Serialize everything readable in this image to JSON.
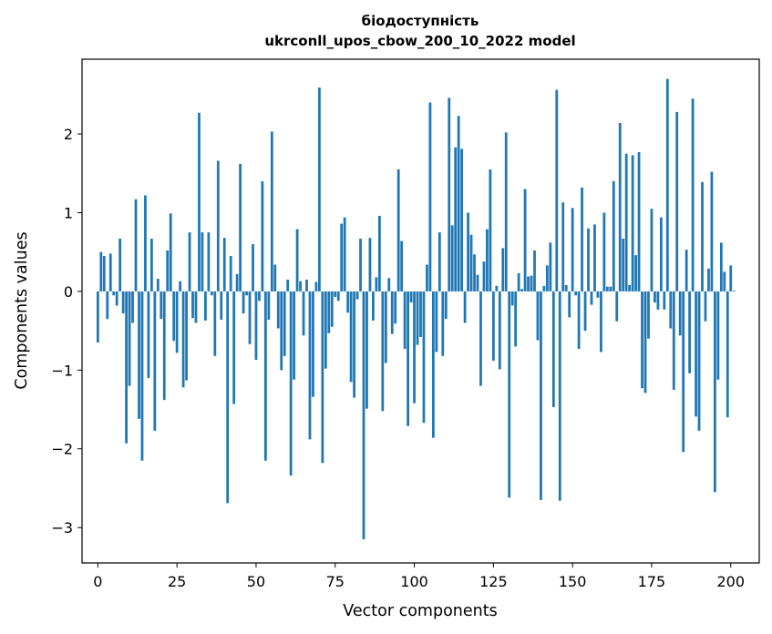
{
  "chart_data": {
    "type": "bar",
    "title": "біодоступність",
    "subtitle": "ukrconll_upos_cbow_200_10_2022 model",
    "xlabel": "Vector components",
    "ylabel": "Components values",
    "xlim": [
      -5,
      209
    ],
    "ylim": [
      -3.45,
      2.95
    ],
    "xticks": [
      0,
      25,
      50,
      75,
      100,
      125,
      150,
      175,
      200
    ],
    "xtick_labels": [
      "0",
      "25",
      "50",
      "75",
      "100",
      "125",
      "150",
      "175",
      "200"
    ],
    "yticks": [
      -3,
      -2,
      -1,
      0,
      1,
      2
    ],
    "ytick_labels": [
      "−3",
      "−2",
      "−1",
      "0",
      "1",
      "2"
    ],
    "bar_color": "#1f77b4",
    "grid": false,
    "values": [
      -0.65,
      0.5,
      0.45,
      -0.35,
      0.48,
      -0.05,
      -0.18,
      0.67,
      -0.28,
      -1.93,
      -1.2,
      -0.4,
      1.17,
      -1.62,
      -2.15,
      1.22,
      -1.1,
      0.67,
      -1.77,
      0.16,
      -0.35,
      -1.38,
      0.52,
      0.99,
      -0.63,
      -0.78,
      0.13,
      -1.22,
      -1.13,
      0.75,
      -0.34,
      -0.4,
      2.27,
      0.75,
      -0.37,
      0.75,
      -0.05,
      -0.82,
      1.66,
      -0.36,
      0.68,
      -2.69,
      0.45,
      -1.43,
      0.22,
      1.62,
      -0.28,
      -0.05,
      -0.67,
      0.6,
      -0.87,
      -0.12,
      1.4,
      -2.15,
      -0.36,
      2.03,
      0.34,
      -0.47,
      -1.0,
      -0.82,
      0.15,
      -2.34,
      -1.12,
      0.79,
      0.13,
      -0.56,
      0.15,
      -1.88,
      -1.34,
      0.12,
      2.59,
      -2.18,
      -0.98,
      -0.53,
      -0.45,
      -0.07,
      -0.12,
      0.86,
      0.94,
      -0.27,
      -1.15,
      -1.35,
      -0.1,
      0.67,
      -3.15,
      -1.49,
      0.68,
      -0.37,
      0.18,
      0.96,
      -1.52,
      -0.91,
      0.17,
      -0.54,
      -0.41,
      1.55,
      0.64,
      -0.73,
      -1.71,
      -0.14,
      -1.42,
      -0.68,
      -0.58,
      -1.67,
      0.34,
      2.4,
      -1.86,
      -0.77,
      0.75,
      -0.82,
      -0.35,
      2.46,
      0.84,
      1.83,
      2.23,
      1.81,
      -0.4,
      1.0,
      0.72,
      0.47,
      0.21,
      -1.2,
      0.38,
      0.79,
      1.55,
      -0.88,
      0.07,
      -0.99,
      0.55,
      2.02,
      -2.62,
      -0.18,
      -0.7,
      0.23,
      0.03,
      1.3,
      0.19,
      0.2,
      0.52,
      -0.62,
      -2.65,
      0.07,
      0.33,
      0.62,
      -1.47,
      2.56,
      -2.66,
      1.13,
      0.08,
      -0.33,
      1.06,
      -0.05,
      -0.73,
      1.32,
      -0.5,
      0.8,
      -0.17,
      0.85,
      -0.08,
      -0.77,
      1.0,
      0.06,
      0.06,
      1.4,
      -0.38,
      2.14,
      0.67,
      1.75,
      0.08,
      1.73,
      0.46,
      1.77,
      -1.23,
      -1.29,
      -0.6,
      1.05,
      -0.14,
      -0.23,
      0.94,
      -0.23,
      2.7,
      -0.47,
      -1.25,
      2.28,
      -0.56,
      -2.04,
      0.53,
      -1.04,
      2.45,
      -1.59,
      -1.77,
      1.39,
      -0.38,
      0.29,
      1.52,
      -2.55,
      -1.12,
      0.62,
      0.25,
      -1.6,
      0.33,
      0.01
    ]
  }
}
